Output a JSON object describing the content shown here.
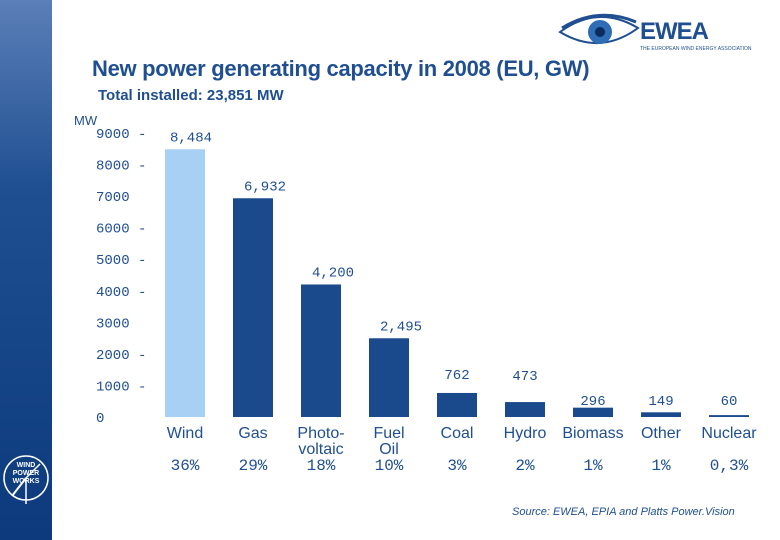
{
  "brand": {
    "name": "EWEA",
    "subtitle": "THE EUROPEAN WIND ENERGY ASSOCIATION",
    "sidebar_logo_lines": [
      "WIND",
      "POWER",
      "WORKS"
    ]
  },
  "colors": {
    "bar": "#1a4a8c",
    "highlight_bar": "#a8d0f5",
    "text": "#1f4f91",
    "axis_text": "#1f4f91"
  },
  "chart_data": {
    "type": "bar",
    "title": "New power generating capacity in 2008 (EU, GW)",
    "subtitle": "Total installed: 23,851 MW",
    "ylabel": "MW",
    "ylim": [
      0,
      9000
    ],
    "yticks": [
      {
        "value": 0,
        "label": "0"
      },
      {
        "value": 1000,
        "label": "1000 -"
      },
      {
        "value": 2000,
        "label": "2000 -"
      },
      {
        "value": 3000,
        "label": "3000"
      },
      {
        "value": 4000,
        "label": "4000 -"
      },
      {
        "value": 5000,
        "label": "5000 -"
      },
      {
        "value": 6000,
        "label": "6000 -"
      },
      {
        "value": 7000,
        "label": "7000"
      },
      {
        "value": 8000,
        "label": "8000 -"
      },
      {
        "value": 9000,
        "label": "9000 -"
      }
    ],
    "categories": [
      {
        "lines": [
          "Wind"
        ],
        "value": 8484,
        "value_label": "8,484",
        "share": "36%",
        "highlight": true
      },
      {
        "lines": [
          "Gas"
        ],
        "value": 6932,
        "value_label": "6,932",
        "share": "29%",
        "highlight": false
      },
      {
        "lines": [
          "Photo-",
          "voltaic"
        ],
        "value": 4200,
        "value_label": "4,200",
        "share": "18%",
        "highlight": false
      },
      {
        "lines": [
          "Fuel",
          "Oil"
        ],
        "value": 2495,
        "value_label": "2,495",
        "share": "10%",
        "highlight": false
      },
      {
        "lines": [
          "Coal"
        ],
        "value": 762,
        "value_label": "762",
        "share": "3%",
        "highlight": false
      },
      {
        "lines": [
          "Hydro"
        ],
        "value": 473,
        "value_label": "473",
        "share": "2%",
        "highlight": false
      },
      {
        "lines": [
          "Biomass"
        ],
        "value": 296,
        "value_label": "296",
        "share": "1%",
        "highlight": false
      },
      {
        "lines": [
          "Other"
        ],
        "value": 149,
        "value_label": "149",
        "share": "1%",
        "highlight": false
      },
      {
        "lines": [
          "Nuclear"
        ],
        "value": 60,
        "value_label": "60",
        "share": "0,3%",
        "highlight": false
      }
    ],
    "source": "Source: EWEA, EPIA and Platts Power.Vision"
  }
}
